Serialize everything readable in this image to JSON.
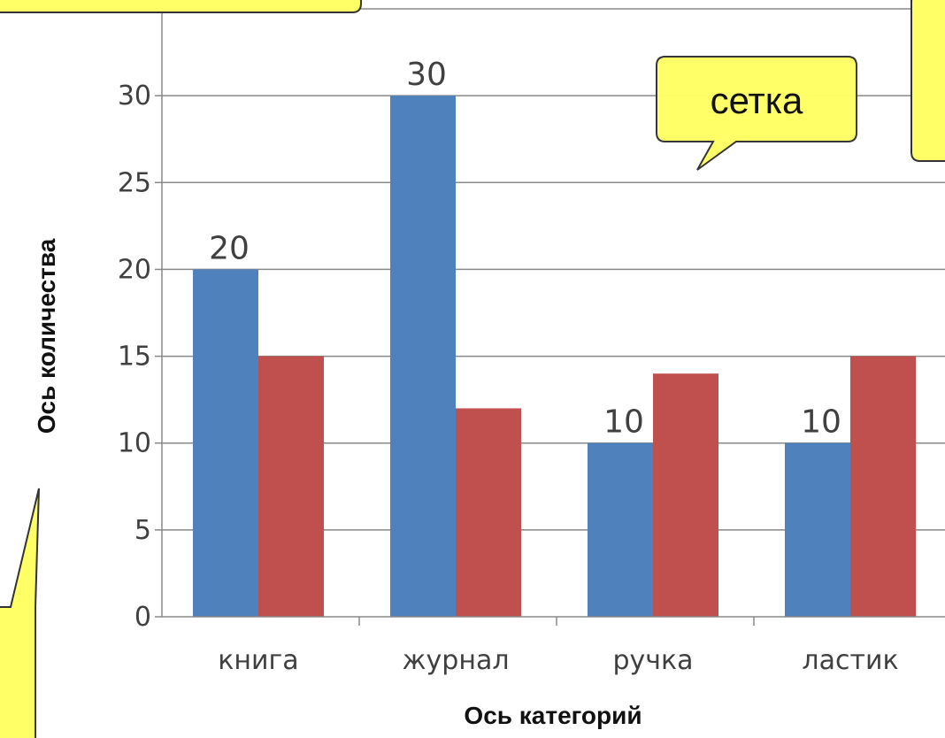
{
  "chart_data": {
    "type": "bar",
    "categories": [
      "книга",
      "журнал",
      "ручка",
      "ластик"
    ],
    "series": [
      {
        "values": [
          20,
          30,
          10,
          10
        ],
        "color": "#4f81bd"
      },
      {
        "values": [
          15,
          12,
          14,
          15
        ],
        "color": "#c0504d"
      }
    ],
    "data_labels": [
      "20",
      "30",
      "10",
      "10"
    ],
    "xlabel": "Ось категорий",
    "ylabel": "Ось количества",
    "ylim": [
      0,
      35
    ],
    "yticks": [
      0,
      5,
      10,
      15,
      20,
      25,
      30
    ],
    "grid": true
  },
  "callouts": {
    "grid": "сетка"
  },
  "colors": {
    "callout_fill": "#ffff66",
    "callout_stroke": "#333333",
    "axis": "#888888",
    "grid": "#888888"
  }
}
